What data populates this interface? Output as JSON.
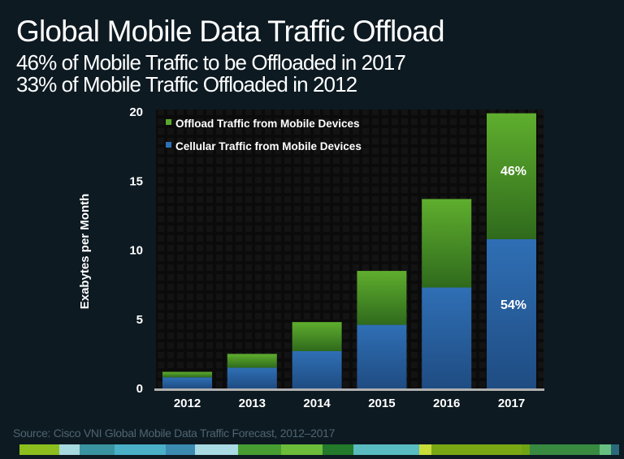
{
  "header": {
    "title": "Global Mobile Data Traffic Offload",
    "subtitle_1": "46% of Mobile Traffic to be Offloaded in 2017",
    "subtitle_2": "33% of Mobile Traffic Offloaded in 2012"
  },
  "footer": {
    "source": "Source: Cisco VNI Global Mobile Data Traffic Forecast, 2012–2017",
    "strip_colors": [
      "#8cbf1e",
      "#a7d9e0",
      "#3a93a0",
      "#49b0c8",
      "#3b8ab0",
      "#a8dbe4",
      "#469e32",
      "#6cbd3a",
      "#227a2a",
      "#58bcc0",
      "#c8dc3a",
      "#7aa814",
      "#6ea314",
      "#388a40",
      "#67c080",
      "#2a6a7a"
    ]
  },
  "chart_data": {
    "type": "bar",
    "stacked": true,
    "title": "",
    "xlabel": "",
    "ylabel": "Exabytes per Month",
    "ylim": [
      0,
      20
    ],
    "yticks": [
      "0",
      "5",
      "10",
      "15",
      "20"
    ],
    "categories": [
      "2012",
      "2013",
      "2014",
      "2015",
      "2016",
      "2017"
    ],
    "series": [
      {
        "name": "Cellular Traffic from Mobile Devices",
        "color": "#2e6fb5",
        "values": [
          0.8,
          1.5,
          2.7,
          4.6,
          7.3,
          10.8
        ]
      },
      {
        "name": "Offload Traffic from Mobile Devices",
        "color": "#5aa82e",
        "values": [
          0.4,
          1.0,
          2.1,
          3.9,
          6.4,
          9.1
        ]
      }
    ],
    "legend_order": [
      "Offload Traffic from Mobile Devices",
      "Cellular Traffic from Mobile Devices"
    ],
    "legend_placement": "top-left",
    "annotations": [
      {
        "category": "2017",
        "series": "Offload Traffic from Mobile Devices",
        "text": "46%"
      },
      {
        "category": "2017",
        "series": "Cellular Traffic from Mobile Devices",
        "text": "54%"
      }
    ],
    "grid": false
  }
}
